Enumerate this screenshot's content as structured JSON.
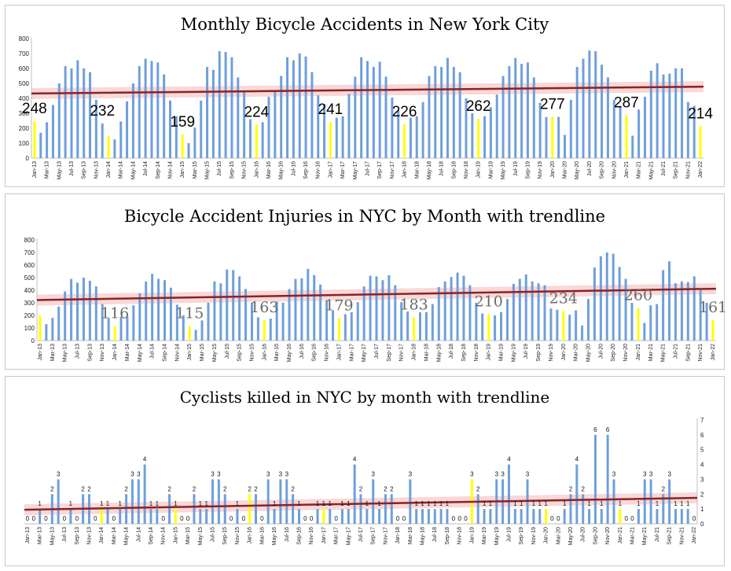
{
  "months": [
    "Jan-13",
    "Feb-13",
    "Mar-13",
    "Apr-13",
    "May-13",
    "Jun-13",
    "Jul-13",
    "Aug-13",
    "Sep-13",
    "Oct-13",
    "Nov-13",
    "Dec-13",
    "Jan-14",
    "Feb-14",
    "Mar-14",
    "Apr-14",
    "May-14",
    "Jun-14",
    "Jul-14",
    "Aug-14",
    "Sep-14",
    "Oct-14",
    "Nov-14",
    "Dec-14",
    "Jan-15",
    "Feb-15",
    "Mar-15",
    "Apr-15",
    "May-15",
    "Jun-15",
    "Jul-15",
    "Aug-15",
    "Sep-15",
    "Oct-15",
    "Nov-15",
    "Dec-15",
    "Jan-16",
    "Feb-16",
    "Mar-16",
    "Apr-16",
    "May-16",
    "Jun-16",
    "Jul-16",
    "Aug-16",
    "Sep-16",
    "Oct-16",
    "Nov-16",
    "Dec-16",
    "Jan-17",
    "Feb-17",
    "Mar-17",
    "Apr-17",
    "May-17",
    "Jun-17",
    "Jul-17",
    "Aug-17",
    "Sep-17",
    "Oct-17",
    "Nov-17",
    "Dec-17",
    "Jan-18",
    "Feb-18",
    "Mar-18",
    "Apr-18",
    "May-18",
    "Jun-18",
    "Jul-18",
    "Aug-18",
    "Sep-18",
    "Oct-18",
    "Nov-18",
    "Dec-18",
    "Jan-19",
    "Feb-19",
    "Mar-19",
    "Apr-19",
    "May-19",
    "Jun-19",
    "Jul-19",
    "Aug-19",
    "Sep-19",
    "Oct-19",
    "Nov-19",
    "Dec-19",
    "Jan-20",
    "Feb-20",
    "Mar-20",
    "Apr-20",
    "May-20",
    "Jun-20",
    "Jul-20",
    "Aug-20",
    "Sep-20",
    "Oct-20",
    "Nov-20",
    "Dec-20",
    "Jan-21",
    "Feb-21",
    "Mar-21",
    "Apr-21",
    "May-21",
    "Jun-21",
    "Jul-21",
    "Aug-21",
    "Sep-21",
    "Oct-21",
    "Nov-21",
    "Dec-21",
    "Jan-22"
  ],
  "colors": {
    "bar": "#6f9fdc",
    "january_bar": "#ffff00",
    "trendline": "#8b2323",
    "trend_band": "#f2b8b8",
    "axis": "#bfbfbf"
  },
  "chart_data": [
    {
      "type": "bar",
      "title": "Monthly Bicycle Accidents in New York City",
      "ylim": [
        0,
        800
      ],
      "yticks": [
        "0",
        "100",
        "200",
        "300",
        "400",
        "500",
        "600",
        "700",
        "800"
      ],
      "highlight": "January",
      "trendline": true,
      "trend_start": 432,
      "trend_end": 478,
      "values": [
        248,
        170,
        240,
        355,
        500,
        615,
        600,
        655,
        600,
        575,
        390,
        232,
        150,
        125,
        245,
        380,
        500,
        615,
        665,
        650,
        640,
        560,
        385,
        280,
        159,
        100,
        205,
        385,
        610,
        590,
        715,
        710,
        675,
        540,
        450,
        260,
        224,
        240,
        410,
        450,
        550,
        675,
        655,
        700,
        680,
        575,
        420,
        360,
        241,
        270,
        280,
        430,
        545,
        675,
        650,
        610,
        645,
        545,
        405,
        320,
        226,
        270,
        280,
        375,
        550,
        615,
        610,
        670,
        610,
        575,
        400,
        300,
        262,
        280,
        340,
        425,
        550,
        615,
        670,
        630,
        640,
        540,
        370,
        275,
        277,
        275,
        155,
        390,
        610,
        665,
        720,
        715,
        625,
        540,
        390,
        345,
        287,
        150,
        325,
        410,
        585,
        635,
        560,
        565,
        600,
        600,
        375,
        350,
        214
      ],
      "annotations": [
        {
          "month": "Jan-13",
          "text": "248"
        },
        {
          "month": "Dec-13",
          "text": "232"
        },
        {
          "month": "Jan-15",
          "text": "159"
        },
        {
          "month": "Jan-16",
          "text": "224"
        },
        {
          "month": "Jan-17",
          "text": "241"
        },
        {
          "month": "Jan-18",
          "text": "226"
        },
        {
          "month": "Jan-19",
          "text": "262"
        },
        {
          "month": "Jan-20",
          "text": "277"
        },
        {
          "month": "Jan-21",
          "text": "287"
        },
        {
          "month": "Jan-22",
          "text": "214"
        }
      ]
    },
    {
      "type": "bar",
      "title": "Bicycle Accident Injuries in NYC by Month with trendline",
      "ylim": [
        0,
        800
      ],
      "yticks": [
        "0",
        "100",
        "200",
        "300",
        "400",
        "500",
        "600",
        "700",
        "800"
      ],
      "highlight": "January",
      "trendline": true,
      "trend_start": 322,
      "trend_end": 412,
      "values": [
        200,
        130,
        180,
        270,
        390,
        490,
        460,
        500,
        475,
        430,
        290,
        180,
        116,
        190,
        190,
        280,
        375,
        470,
        530,
        490,
        480,
        420,
        285,
        200,
        115,
        85,
        160,
        300,
        470,
        455,
        565,
        560,
        510,
        410,
        300,
        185,
        163,
        175,
        310,
        300,
        410,
        490,
        495,
        570,
        520,
        445,
        320,
        240,
        179,
        210,
        225,
        305,
        430,
        515,
        510,
        480,
        520,
        440,
        305,
        230,
        183,
        225,
        225,
        290,
        425,
        470,
        505,
        540,
        515,
        440,
        300,
        215,
        210,
        200,
        225,
        330,
        450,
        490,
        525,
        470,
        455,
        440,
        255,
        245,
        234,
        205,
        240,
        120,
        330,
        580,
        670,
        700,
        690,
        585,
        490,
        300,
        260,
        140,
        280,
        290,
        560,
        630,
        455,
        470,
        465,
        510,
        400,
        300,
        161
      ],
      "annotations": [
        {
          "month": "Jan-14",
          "text": "116"
        },
        {
          "month": "Jan-15",
          "text": "115"
        },
        {
          "month": "Jan-16",
          "text": "163"
        },
        {
          "month": "Jan-17",
          "text": "179"
        },
        {
          "month": "Jan-18",
          "text": "183"
        },
        {
          "month": "Jan-19",
          "text": "210"
        },
        {
          "month": "Jan-20",
          "text": "234"
        },
        {
          "month": "Jan-21",
          "text": "260"
        },
        {
          "month": "Jan-22",
          "text": "161"
        }
      ]
    },
    {
      "type": "bar",
      "title": "Cyclists killed in NYC  by month with trendline",
      "ylim": [
        0,
        7
      ],
      "yticks": [
        "0",
        "1",
        "2",
        "3",
        "4",
        "5",
        "6",
        "7"
      ],
      "y_axis_side": "right",
      "highlight": "January",
      "trendline": true,
      "trend_start": 0.95,
      "trend_end": 1.75,
      "data_labels": true,
      "values": [
        0,
        0,
        1,
        0,
        2,
        3,
        0,
        1,
        0,
        2,
        2,
        0,
        1,
        1,
        0,
        1,
        2,
        3,
        3,
        4,
        1,
        1,
        0,
        2,
        1,
        0,
        0,
        2,
        1,
        1,
        3,
        3,
        2,
        0,
        1,
        0,
        2,
        2,
        0,
        3,
        1,
        3,
        3,
        2,
        1,
        0,
        0,
        1,
        1,
        1,
        0,
        1,
        1,
        4,
        2,
        1,
        3,
        1,
        2,
        2,
        0,
        0,
        3,
        1,
        1,
        1,
        1,
        1,
        1,
        0,
        0,
        0,
        3,
        2,
        1,
        1,
        3,
        3,
        4,
        1,
        1,
        3,
        1,
        1,
        1,
        0,
        0,
        1,
        2,
        4,
        2,
        1,
        6,
        1,
        6,
        3,
        1,
        0,
        0,
        1,
        3,
        3,
        1,
        2,
        3,
        1,
        1,
        1,
        0
      ]
    }
  ]
}
